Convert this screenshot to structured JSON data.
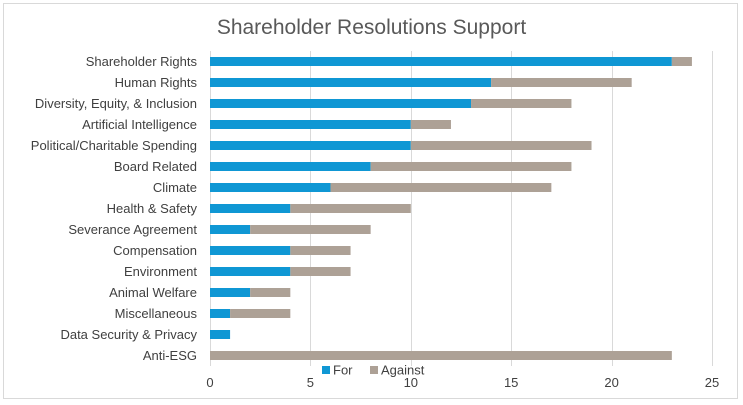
{
  "chart_data": {
    "type": "bar",
    "orientation": "horizontal",
    "stacked": true,
    "title": "Shareholder Resolutions Support",
    "xlabel": "",
    "ylabel": "",
    "categories": [
      "Shareholder Rights",
      "Human Rights",
      "Diversity, Equity, & Inclusion",
      "Artificial Intelligence",
      "Political/Charitable Spending",
      "Board Related",
      "Climate",
      "Health & Safety",
      "Severance Agreement",
      "Compensation",
      "Environment",
      "Animal Welfare",
      "Miscellaneous",
      "Data Security & Privacy",
      "Anti-ESG"
    ],
    "series": [
      {
        "name": "For",
        "color": "#0f97d4",
        "values": [
          23,
          14,
          13,
          10,
          10,
          8,
          6,
          4,
          2,
          4,
          4,
          2,
          1,
          1,
          0
        ]
      },
      {
        "name": "Against",
        "color": "#ada196",
        "values": [
          1,
          7,
          5,
          2,
          9,
          10,
          11,
          6,
          6,
          3,
          3,
          2,
          3,
          0,
          23
        ]
      }
    ],
    "xlim": [
      0,
      25
    ],
    "xticks": [
      0,
      5,
      10,
      15,
      20,
      25
    ],
    "grid": true,
    "legend_position": "bottom"
  }
}
